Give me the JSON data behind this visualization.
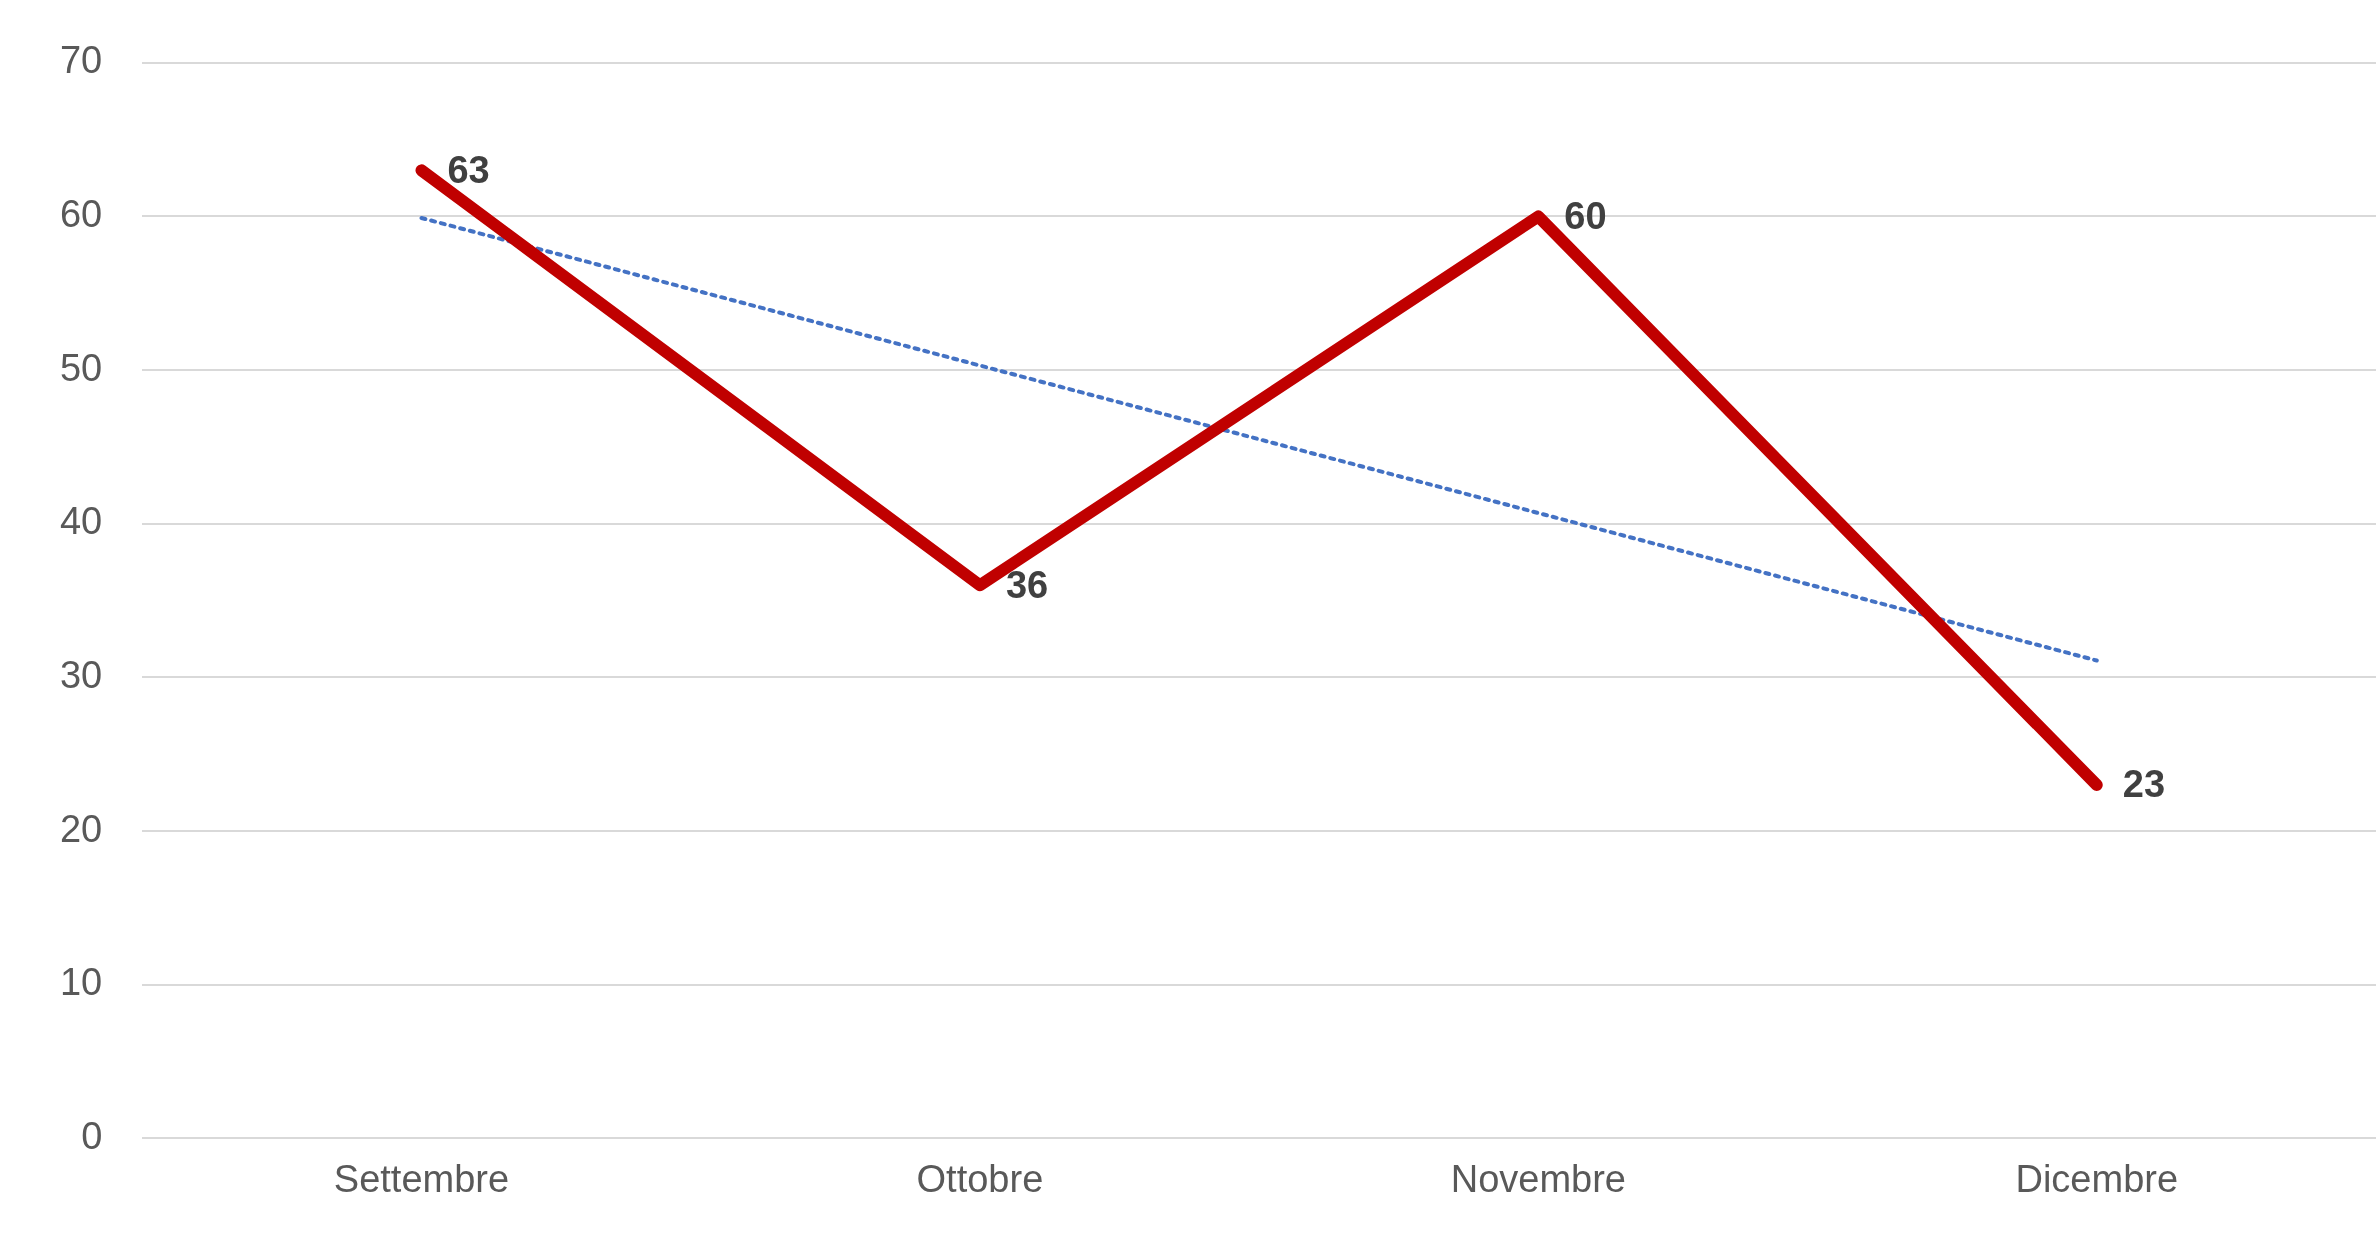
{
  "chart_data": {
    "type": "line",
    "categories": [
      "Settembre",
      "Ottobre",
      "Novembre",
      "Dicembre"
    ],
    "series": [
      {
        "color": "#c00000",
        "values": [
          63,
          36,
          60,
          23
        ],
        "value_labels": [
          "63",
          "36",
          "60",
          "23"
        ],
        "line_style": "solid"
      },
      {
        "type": "line",
        "color": "#4472c4",
        "values": [
          59.9,
          50.3,
          40.7,
          31.1
        ],
        "line_style": "dotted"
      }
    ],
    "ylim": [
      0,
      70
    ],
    "yticks": [
      0,
      10,
      20,
      30,
      40,
      50,
      60,
      70
    ],
    "grid": "y",
    "legend": false,
    "marker": "none"
  }
}
